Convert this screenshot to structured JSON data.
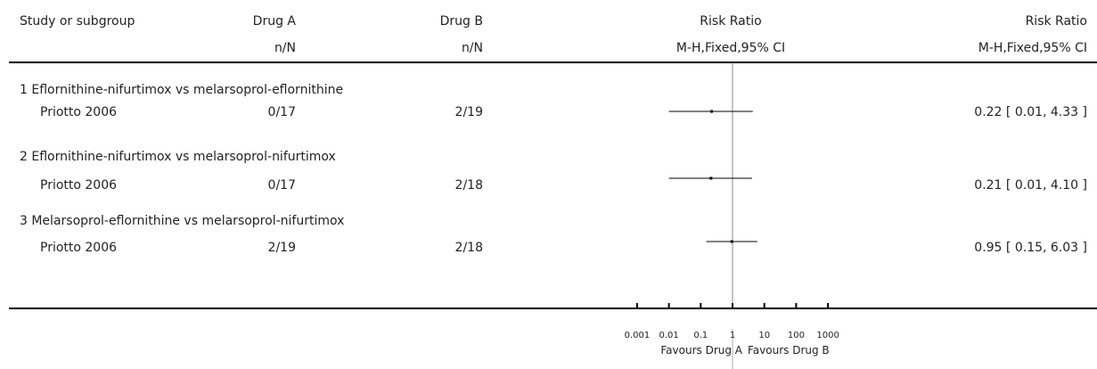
{
  "headers": {
    "study": "Study or subgroup",
    "drug_a": "Drug A",
    "drug_a_sub": "n/N",
    "drug_b": "Drug B",
    "drug_b_sub": "n/N",
    "rr_plot": "Risk Ratio",
    "rr_plot_sub": "M-H,Fixed,95% CI",
    "rr_text": "Risk Ratio",
    "rr_text_sub": "M-H,Fixed,95% CI"
  },
  "footer": {
    "favours_left": "Favours Drug A",
    "favours_right": "Favours Drug B"
  },
  "chart_data": {
    "type": "forest",
    "scale": "log",
    "xlim": [
      0.001,
      1000
    ],
    "ticks": [
      0.001,
      0.01,
      0.1,
      1,
      10,
      100,
      1000
    ],
    "tick_labels": [
      "0.001",
      "0.01",
      "0.1",
      "1",
      "10",
      "100",
      "1000"
    ],
    "null_value": 1,
    "comparisons": [
      {
        "label": "1 Eflornithine-nifurtimox vs melarsoprol-eflornithine",
        "studies": [
          {
            "name": "Priotto 2006",
            "a": "0/17",
            "b": "2/19",
            "rr": 0.22,
            "lo": 0.01,
            "hi": 4.33,
            "ci_text": "0.22 [ 0.01, 4.33 ]"
          }
        ]
      },
      {
        "label": "2 Eflornithine-nifurtimox vs melarsoprol-nifurtimox",
        "studies": [
          {
            "name": "Priotto 2006",
            "a": "0/17",
            "b": "2/18",
            "rr": 0.21,
            "lo": 0.01,
            "hi": 4.1,
            "ci_text": "0.21 [ 0.01, 4.10 ]"
          }
        ]
      },
      {
        "label": "3 Melarsoprol-eflornithine vs melarsoprol-nifurtimox",
        "studies": [
          {
            "name": "Priotto 2006",
            "a": "2/19",
            "b": "2/18",
            "rr": 0.95,
            "lo": 0.15,
            "hi": 6.03,
            "ci_text": "0.95 [ 0.15, 6.03 ]"
          }
        ]
      }
    ]
  }
}
